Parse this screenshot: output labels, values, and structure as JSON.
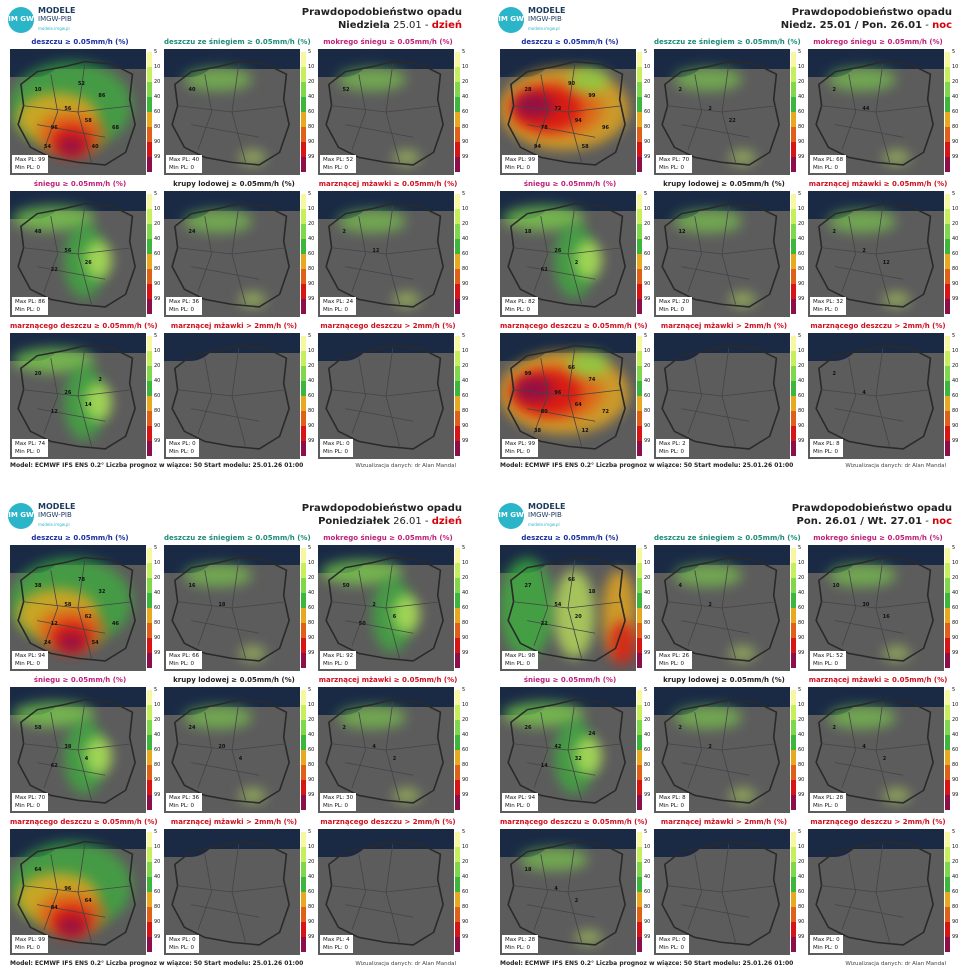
{
  "legend": {
    "ticks": [
      "5",
      "10",
      "20",
      "40",
      "60",
      "80",
      "90",
      "99"
    ],
    "colors": [
      "#f7f7a0",
      "#c5ef5b",
      "#7fd84a",
      "#3cb63c",
      "#e8a91e",
      "#e06018",
      "#d81414",
      "#8c0f4a"
    ]
  },
  "quadrants": [
    {
      "logo": {
        "t1": "MODELE",
        "t2": "IMGW-PIB",
        "t3": "modele.imgw.pl",
        "badge": "IM GW"
      },
      "title_line1": "Prawdopodobieństwo opadu",
      "title_day": "Niedziela",
      "title_date": "25.01",
      "title_sep": " - ",
      "title_period": "dzień",
      "panels": [
        {
          "title": "deszczu ≥ 0.05mm/h (%)",
          "tcolor": "c-blue",
          "max": "Max PL: 99",
          "min": "Min PL: 0",
          "labels": [
            "10",
            "56",
            "58",
            "96",
            "86",
            "52",
            "68",
            "54",
            "40"
          ],
          "intensity": 3
        },
        {
          "title": "deszczu ze śniegiem ≥ 0.05mm/h (%)",
          "tcolor": "c-teal",
          "max": "Max PL: 40",
          "min": "Min PL: 0",
          "labels": [
            "40"
          ],
          "intensity": 0
        },
        {
          "title": "mokrego śniegu ≥ 0.05mm/h (%)",
          "tcolor": "c-mag",
          "max": "Max PL: 52",
          "min": "Min PL: 0",
          "labels": [
            "52"
          ],
          "intensity": 0
        },
        {
          "title": "śniegu ≥ 0.05mm/h (%)",
          "tcolor": "c-mag",
          "max": "Max PL: 86",
          "min": "Min PL: 0",
          "labels": [
            "48",
            "56",
            "26",
            "22"
          ],
          "intensity": 1
        },
        {
          "title": "krupy lodowej ≥ 0.05mm/h (%)",
          "tcolor": "c-black",
          "max": "Max PL: 36",
          "min": "Min PL: 0",
          "labels": [
            "24"
          ],
          "intensity": 0
        },
        {
          "title": "marznącej mżawki ≥ 0.05mm/h (%)",
          "tcolor": "c-red",
          "max": "Max PL: 24",
          "min": "Min PL: 0",
          "labels": [
            "2",
            "12"
          ],
          "intensity": 0
        },
        {
          "title": "marznącego deszczu ≥ 0.05mm/h (%)",
          "tcolor": "c-red",
          "max": "Max PL: 74",
          "min": "Min PL: 0",
          "labels": [
            "20",
            "26",
            "14",
            "12",
            "2"
          ],
          "intensity": 1
        },
        {
          "title": "marznącej mżawki > 2mm/h (%)",
          "tcolor": "c-red",
          "max": "Max PL: 0",
          "min": "Min PL: 0",
          "labels": [],
          "intensity": -1
        },
        {
          "title": "marznącego deszczu > 2mm/h (%)",
          "tcolor": "c-red",
          "max": "Max PL: 0",
          "min": "Min PL: 0",
          "labels": [],
          "intensity": -1
        }
      ],
      "footer_model_label": "Model:",
      "footer_model": "ECMWF IFS ENS 0.2°",
      "footer_count_label": "Liczba prognoz w wiązce:",
      "footer_count": "50",
      "footer_start_label": "Start modelu:",
      "footer_start": "25.01.26 01:00",
      "viz": "Wizualizacja danych: dr Alan Mandal"
    },
    {
      "logo": {
        "t1": "MODELE",
        "t2": "IMGW-PIB",
        "t3": "modele.imgw.pl",
        "badge": "IM GW"
      },
      "title_line1": "Prawdopodobieństwo opadu",
      "title_day": "Niedz. 25.01 / Pon. 26.01",
      "title_date": "",
      "title_sep": " - ",
      "title_period": "noc",
      "panels": [
        {
          "title": "deszczu ≥ 0.05mm/h (%)",
          "tcolor": "c-blue",
          "max": "Max PL: 99",
          "min": "Min PL: 0",
          "labels": [
            "28",
            "72",
            "94",
            "78",
            "99",
            "90",
            "96",
            "94",
            "58"
          ],
          "intensity": 4
        },
        {
          "title": "deszczu ze śniegiem ≥ 0.05mm/h (%)",
          "tcolor": "c-teal",
          "max": "Max PL: 70",
          "min": "Min PL: 0",
          "labels": [
            "2",
            "2",
            "22"
          ],
          "intensity": 0
        },
        {
          "title": "mokrego śniegu ≥ 0.05mm/h (%)",
          "tcolor": "c-mag",
          "max": "Max PL: 68",
          "min": "Min PL: 0",
          "labels": [
            "2",
            "44"
          ],
          "intensity": 0
        },
        {
          "title": "śniegu ≥ 0.05mm/h (%)",
          "tcolor": "c-mag",
          "max": "Max PL: 82",
          "min": "Min PL: 0",
          "labels": [
            "18",
            "26",
            "2",
            "62"
          ],
          "intensity": 1
        },
        {
          "title": "krupy lodowej ≥ 0.05mm/h (%)",
          "tcolor": "c-black",
          "max": "Max PL: 20",
          "min": "Min PL: 0",
          "labels": [
            "12"
          ],
          "intensity": 0
        },
        {
          "title": "marznącej mżawki ≥ 0.05mm/h (%)",
          "tcolor": "c-red",
          "max": "Max PL: 32",
          "min": "Min PL: 0",
          "labels": [
            "2",
            "2",
            "12"
          ],
          "intensity": 0
        },
        {
          "title": "marznącego deszczu ≥ 0.05mm/h (%)",
          "tcolor": "c-red",
          "max": "Max PL: 99",
          "min": "Min PL: 0",
          "labels": [
            "99",
            "96",
            "64",
            "80",
            "74",
            "66",
            "72",
            "38",
            "12"
          ],
          "intensity": 4
        },
        {
          "title": "marznącej mżawki > 2mm/h (%)",
          "tcolor": "c-red",
          "max": "Max PL: 2",
          "min": "Min PL: 0",
          "labels": [],
          "intensity": -1
        },
        {
          "title": "marznącego deszczu > 2mm/h (%)",
          "tcolor": "c-red",
          "max": "Max PL: 8",
          "min": "Min PL: 0",
          "labels": [
            "2",
            "4"
          ],
          "intensity": -1
        }
      ],
      "footer_model_label": "Model:",
      "footer_model": "ECMWF IFS ENS 0.2°",
      "footer_count_label": "Liczba prognoz w wiązce:",
      "footer_count": "50",
      "footer_start_label": "Start modelu:",
      "footer_start": "25.01.26 01:00",
      "viz": "Wizualizacja danych: dr Alan Mandal"
    },
    {
      "logo": {
        "t1": "MODELE",
        "t2": "IMGW-PIB",
        "t3": "modele.imgw.pl",
        "badge": "IM GW"
      },
      "title_line1": "Prawdopodobieństwo opadu",
      "title_day": "Poniedziałek",
      "title_date": "26.01",
      "title_sep": " - ",
      "title_period": "dzień",
      "panels": [
        {
          "title": "deszczu ≥ 0.05mm/h (%)",
          "tcolor": "c-blue",
          "max": "Max PL: 94",
          "min": "Min PL: 0",
          "labels": [
            "38",
            "58",
            "62",
            "12",
            "32",
            "78",
            "46",
            "24",
            "54"
          ],
          "intensity": 3
        },
        {
          "title": "deszczu ze śniegiem ≥ 0.05mm/h (%)",
          "tcolor": "c-teal",
          "max": "Max PL: 66",
          "min": "Min PL: 0",
          "labels": [
            "16",
            "18"
          ],
          "intensity": 0
        },
        {
          "title": "mokrego śniegu ≥ 0.05mm/h (%)",
          "tcolor": "c-mag",
          "max": "Max PL: 92",
          "min": "Min PL: 0",
          "labels": [
            "50",
            "2",
            "6",
            "50"
          ],
          "intensity": 1
        },
        {
          "title": "śniegu ≥ 0.05mm/h (%)",
          "tcolor": "c-mag",
          "max": "Max PL: 70",
          "min": "Min PL: 0",
          "labels": [
            "58",
            "38",
            "4",
            "62"
          ],
          "intensity": 1
        },
        {
          "title": "krupy lodowej ≥ 0.05mm/h (%)",
          "tcolor": "c-black",
          "max": "Max PL: 36",
          "min": "Min PL: 0",
          "labels": [
            "24",
            "20",
            "4"
          ],
          "intensity": 0
        },
        {
          "title": "marznącej mżawki ≥ 0.05mm/h (%)",
          "tcolor": "c-red",
          "max": "Max PL: 30",
          "min": "Min PL: 0",
          "labels": [
            "2",
            "4",
            "2"
          ],
          "intensity": 0
        },
        {
          "title": "marznącego deszczu ≥ 0.05mm/h (%)",
          "tcolor": "c-red",
          "max": "Max PL: 99",
          "min": "Min PL: 0",
          "labels": [
            "64",
            "96",
            "64",
            "84"
          ],
          "intensity": 3
        },
        {
          "title": "marznącej mżawki > 2mm/h (%)",
          "tcolor": "c-red",
          "max": "Max PL: 0",
          "min": "Min PL: 0",
          "labels": [],
          "intensity": -1
        },
        {
          "title": "marznącego deszczu > 2mm/h (%)",
          "tcolor": "c-red",
          "max": "Max PL: 4",
          "min": "Min PL: 0",
          "labels": [],
          "intensity": -1
        }
      ],
      "footer_model_label": "Model:",
      "footer_model": "ECMWF IFS ENS 0.2°",
      "footer_count_label": "Liczba prognoz w wiązce:",
      "footer_count": "50",
      "footer_start_label": "Start modelu:",
      "footer_start": "25.01.26 01:00",
      "viz": "Wizualizacja danych: dr Alan Mandal"
    },
    {
      "logo": {
        "t1": "MODELE",
        "t2": "IMGW-PIB",
        "t3": "modele.imgw.pl",
        "badge": "IM GW"
      },
      "title_line1": "Prawdopodobieństwo opadu",
      "title_day": "Pon. 26.01 / Wt. 27.01",
      "title_date": "",
      "title_sep": " - ",
      "title_period": "noc",
      "panels": [
        {
          "title": "deszczu ≥ 0.05mm/h (%)",
          "tcolor": "c-blue",
          "max": "Max PL: 98",
          "min": "Min PL: 0",
          "labels": [
            "27",
            "54",
            "20",
            "22",
            "18",
            "66"
          ],
          "intensity": 2
        },
        {
          "title": "deszczu ze śniegiem ≥ 0.05mm/h (%)",
          "tcolor": "c-teal",
          "max": "Max PL: 26",
          "min": "Min PL: 0",
          "labels": [
            "4",
            "2"
          ],
          "intensity": 0
        },
        {
          "title": "mokrego śniegu ≥ 0.05mm/h (%)",
          "tcolor": "c-mag",
          "max": "Max PL: 52",
          "min": "Min PL: 0",
          "labels": [
            "10",
            "30",
            "16"
          ],
          "intensity": 0
        },
        {
          "title": "śniegu ≥ 0.05mm/h (%)",
          "tcolor": "c-mag",
          "max": "Max PL: 94",
          "min": "Min PL: 0",
          "labels": [
            "26",
            "42",
            "32",
            "14",
            "24"
          ],
          "intensity": 1
        },
        {
          "title": "krupy lodowej ≥ 0.05mm/h (%)",
          "tcolor": "c-black",
          "max": "Max PL: 8",
          "min": "Min PL: 0",
          "labels": [
            "2",
            "2"
          ],
          "intensity": 0
        },
        {
          "title": "marznącej mżawki ≥ 0.05mm/h (%)",
          "tcolor": "c-red",
          "max": "Max PL: 28",
          "min": "Min PL: 0",
          "labels": [
            "2",
            "4",
            "2"
          ],
          "intensity": 0
        },
        {
          "title": "marznącego deszczu ≥ 0.05mm/h (%)",
          "tcolor": "c-red",
          "max": "Max PL: 28",
          "min": "Min PL: 0",
          "labels": [
            "18",
            "4",
            "2"
          ],
          "intensity": 0
        },
        {
          "title": "marznącej mżawki > 2mm/h (%)",
          "tcolor": "c-red",
          "max": "Max PL: 0",
          "min": "Min PL: 0",
          "labels": [],
          "intensity": -1
        },
        {
          "title": "marznącego deszczu > 2mm/h (%)",
          "tcolor": "c-red",
          "max": "Max PL: 0",
          "min": "Min PL: 0",
          "labels": [],
          "intensity": -1
        }
      ],
      "footer_model_label": "Model:",
      "footer_model": "ECMWF IFS ENS 0.2°",
      "footer_count_label": "Liczba prognoz w wiązce:",
      "footer_count": "50",
      "footer_start_label": "Start modelu:",
      "footer_start": "25.01.26 01:00",
      "viz": "Wizualizacja danych: dr Alan Mandal"
    }
  ]
}
